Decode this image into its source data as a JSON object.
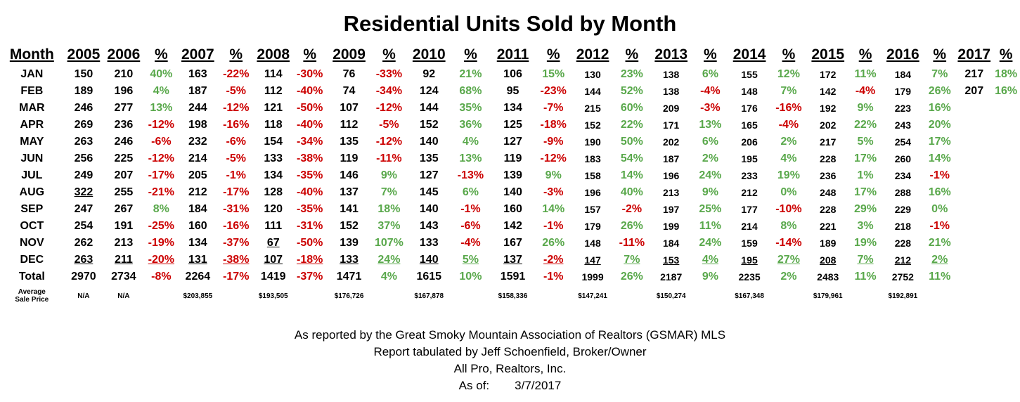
{
  "title": "Residential Units Sold by Month",
  "headers": [
    "Month",
    "2005",
    "2006",
    "%",
    "2007",
    "%",
    "2008",
    "%",
    "2009",
    "%",
    "2010",
    "%",
    "2011",
    "%",
    "2012",
    "%",
    "2013",
    "%",
    "2014",
    "%",
    "2015",
    "%",
    "2016",
    "%",
    "2017",
    "%"
  ],
  "rows": [
    {
      "month": "JAN",
      "cells": [
        "150",
        "210",
        "40%",
        "163",
        "-22%",
        "114",
        "-30%",
        "76",
        "-33%",
        "92",
        "21%",
        "106",
        "15%",
        "130",
        "23%",
        "138",
        "6%",
        "155",
        "12%",
        "172",
        "11%",
        "184",
        "7%",
        "217",
        "18%"
      ]
    },
    {
      "month": "FEB",
      "cells": [
        "189",
        "196",
        "4%",
        "187",
        "-5%",
        "112",
        "-40%",
        "74",
        "-34%",
        "124",
        "68%",
        "95",
        "-23%",
        "144",
        "52%",
        "138",
        "-4%",
        "148",
        "7%",
        "142",
        "-4%",
        "179",
        "26%",
        "207",
        "16%"
      ]
    },
    {
      "month": "MAR",
      "cells": [
        "246",
        "277",
        "13%",
        "244",
        "-12%",
        "121",
        "-50%",
        "107",
        "-12%",
        "144",
        "35%",
        "134",
        "-7%",
        "215",
        "60%",
        "209",
        "-3%",
        "176",
        "-16%",
        "192",
        "9%",
        "223",
        "16%",
        "",
        ""
      ]
    },
    {
      "month": "APR",
      "cells": [
        "269",
        "236",
        "-12%",
        "198",
        "-16%",
        "118",
        "-40%",
        "112",
        "-5%",
        "152",
        "36%",
        "125",
        "-18%",
        "152",
        "22%",
        "171",
        "13%",
        "165",
        "-4%",
        "202",
        "22%",
        "243",
        "20%",
        "",
        ""
      ]
    },
    {
      "month": "MAY",
      "cells": [
        "263",
        "246",
        "-6%",
        "232",
        "-6%",
        "154",
        "-34%",
        "135",
        "-12%",
        "140",
        "4%",
        "127",
        "-9%",
        "190",
        "50%",
        "202",
        "6%",
        "206",
        "2%",
        "217",
        "5%",
        "254",
        "17%",
        "",
        ""
      ]
    },
    {
      "month": "JUN",
      "cells": [
        "256",
        "225",
        "-12%",
        "214",
        "-5%",
        "133",
        "-38%",
        "119",
        "-11%",
        "135",
        "13%",
        "119",
        "-12%",
        "183",
        "54%",
        "187",
        "2%",
        "195",
        "4%",
        "228",
        "17%",
        "260",
        "14%",
        "",
        ""
      ]
    },
    {
      "month": "JUL",
      "cells": [
        "249",
        "207",
        "-17%",
        "205",
        "-1%",
        "134",
        "-35%",
        "146",
        "9%",
        "127",
        "-13%",
        "139",
        "9%",
        "158",
        "14%",
        "196",
        "24%",
        "233",
        "19%",
        "236",
        "1%",
        "234",
        "-1%",
        "",
        ""
      ]
    },
    {
      "month": "AUG",
      "cells": [
        "322",
        "255",
        "-21%",
        "212",
        "-17%",
        "128",
        "-40%",
        "137",
        "7%",
        "145",
        "6%",
        "140",
        "-3%",
        "196",
        "40%",
        "213",
        "9%",
        "212",
        "0%",
        "248",
        "17%",
        "288",
        "16%",
        "",
        ""
      ]
    },
    {
      "month": "SEP",
      "cells": [
        "247",
        "267",
        "8%",
        "184",
        "-31%",
        "120",
        "-35%",
        "141",
        "18%",
        "140",
        "-1%",
        "160",
        "14%",
        "157",
        "-2%",
        "197",
        "25%",
        "177",
        "-10%",
        "228",
        "29%",
        "229",
        "0%",
        "",
        ""
      ]
    },
    {
      "month": "OCT",
      "cells": [
        "254",
        "191",
        "-25%",
        "160",
        "-16%",
        "111",
        "-31%",
        "152",
        "37%",
        "143",
        "-6%",
        "142",
        "-1%",
        "179",
        "26%",
        "199",
        "11%",
        "214",
        "8%",
        "221",
        "3%",
        "218",
        "-1%",
        "",
        ""
      ]
    },
    {
      "month": "NOV",
      "cells": [
        "262",
        "213",
        "-19%",
        "134",
        "-37%",
        "67",
        "-50%",
        "139",
        "107%",
        "133",
        "-4%",
        "167",
        "26%",
        "148",
        "-11%",
        "184",
        "24%",
        "159",
        "-14%",
        "189",
        "19%",
        "228",
        "21%",
        "",
        ""
      ]
    },
    {
      "month": "DEC",
      "cells": [
        "263",
        "211",
        "-20%",
        "131",
        "-38%",
        "107",
        "-18%",
        "133",
        "24%",
        "140",
        "5%",
        "137",
        "-2%",
        "147",
        "7%",
        "153",
        "4%",
        "195",
        "27%",
        "208",
        "7%",
        "212",
        "2%",
        "",
        ""
      ]
    },
    {
      "month": "Total",
      "cells": [
        "2970",
        "2734",
        "-8%",
        "2264",
        "-17%",
        "1419",
        "-37%",
        "1471",
        "4%",
        "1615",
        "10%",
        "1591",
        "-1%",
        "1999",
        "26%",
        "2187",
        "9%",
        "2235",
        "2%",
        "2483",
        "11%",
        "2752",
        "11%",
        "",
        ""
      ]
    }
  ],
  "avg_label_line1": "Average",
  "avg_label_line2": "Sale Price",
  "avg_prices": [
    "N/A",
    "N/A",
    "",
    "$203,855",
    "",
    "$193,505",
    "",
    "$176,726",
    "",
    "$167,878",
    "",
    "$158,336",
    "",
    "$147,241",
    "",
    "$150,274",
    "",
    "$167,348",
    "",
    "$179,961",
    "",
    "$192,891",
    "",
    "",
    ""
  ],
  "underlined": {
    "AUG": [
      0
    ],
    "NOV": [
      5
    ],
    "DEC": [
      0,
      1,
      2,
      3,
      4,
      5,
      6,
      7,
      8,
      9,
      10,
      11,
      12,
      13,
      14,
      15,
      16,
      17,
      18,
      19,
      20,
      21,
      22
    ]
  },
  "footer": {
    "line1": "As reported by the Great Smoky Mountain Association of Realtors (GSMAR) MLS",
    "line2": "Report tabulated by Jeff Schoenfield, Broker/Owner",
    "line3": "All Pro, Realtors, Inc.",
    "asof_label": "As of:",
    "asof_date": "3/7/2017"
  },
  "colors": {
    "positive": "#59a84b",
    "negative": "#cc0000",
    "text": "#000000"
  }
}
